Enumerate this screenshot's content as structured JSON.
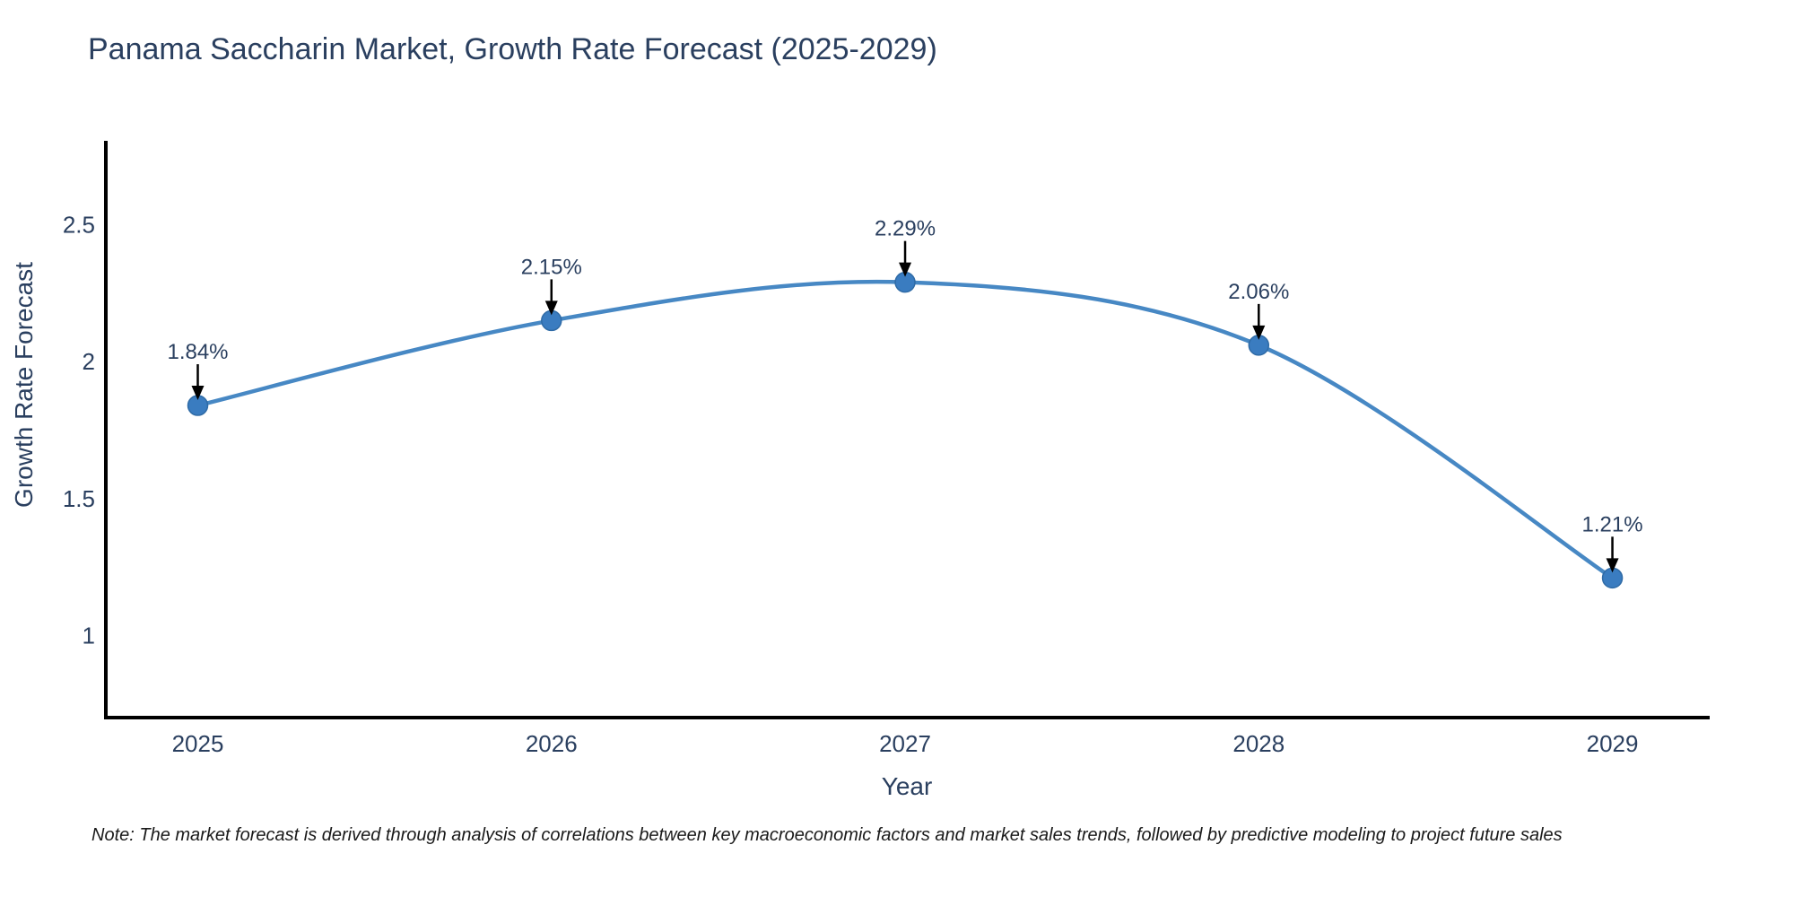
{
  "chart_data": {
    "type": "line",
    "title": "Panama Saccharin Market, Growth Rate Forecast (2025-2029)",
    "x": [
      2025,
      2026,
      2027,
      2028,
      2029
    ],
    "categories": [
      "2025",
      "2026",
      "2027",
      "2028",
      "2029"
    ],
    "values": [
      1.84,
      2.15,
      2.29,
      2.06,
      1.21
    ],
    "point_labels": [
      "1.84%",
      "2.15%",
      "2.29%",
      "2.06%",
      "1.21%"
    ],
    "xlabel": "Year",
    "ylabel": "Growth Rate Forecast",
    "yticks": [
      2.5,
      2,
      1.5,
      1
    ],
    "ytick_labels": [
      "2.5",
      "2",
      "1.5",
      "1"
    ],
    "xlim": [
      2024.74,
      2029.27
    ],
    "ylim": [
      0.7,
      2.8
    ],
    "line_shape": "spline",
    "grid": false,
    "legend": false,
    "note": "Note: The market forecast is derived through analysis of correlations between key macroeconomic factors and market sales trends, followed by predictive modeling to project future sales",
    "colors": {
      "line": "#4788c4",
      "marker": "#3a7cc0",
      "marker_edge": "#2f6ba6",
      "axis": "#000000",
      "text": "#2a3f5f",
      "annotation": "#2a3f5f",
      "note_text": "#1a1a1a"
    }
  }
}
